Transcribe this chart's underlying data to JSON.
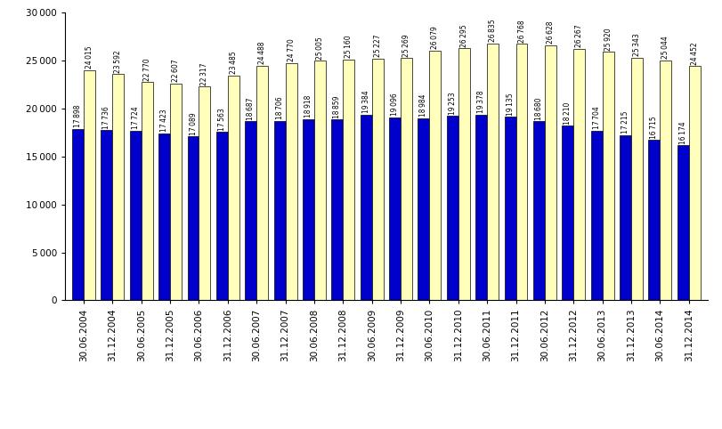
{
  "categories": [
    "30.06.2004",
    "31.12.2004",
    "30.06.2005",
    "31.12.2005",
    "30.06.2006",
    "31.12.2006",
    "30.06.2007",
    "31.12.2007",
    "30.06.2008",
    "31.12.2008",
    "30.06.2009",
    "31.12.2009",
    "30.06.2010",
    "31.12.2010",
    "30.06.2011",
    "31.12.2011",
    "30.06.2012",
    "31.12.2012",
    "30.06.2013",
    "31.12.2013",
    "30.06.2014",
    "31.12.2014"
  ],
  "blue_values": [
    17898,
    17736,
    17724,
    17423,
    17089,
    17563,
    18687,
    18706,
    18918,
    18859,
    19384,
    19096,
    18984,
    19253,
    19378,
    19135,
    18680,
    18210,
    17704,
    17215,
    16715,
    16174
  ],
  "yellow_values": [
    24015,
    23592,
    22770,
    22607,
    22317,
    23485,
    24488,
    24770,
    25005,
    25160,
    25227,
    25269,
    26079,
    26295,
    26835,
    26768,
    26628,
    26267,
    25920,
    25343,
    25044,
    24452
  ],
  "blue_color": "#0000CC",
  "yellow_color": "#FFFFBB",
  "bar_edge_color": "#000000",
  "ylim": [
    0,
    30000
  ],
  "yticks": [
    0,
    5000,
    10000,
    15000,
    20000,
    25000,
    30000
  ],
  "value_fontsize": 5.5,
  "tick_fontsize": 7.5,
  "legend_fontsize": 8.5
}
